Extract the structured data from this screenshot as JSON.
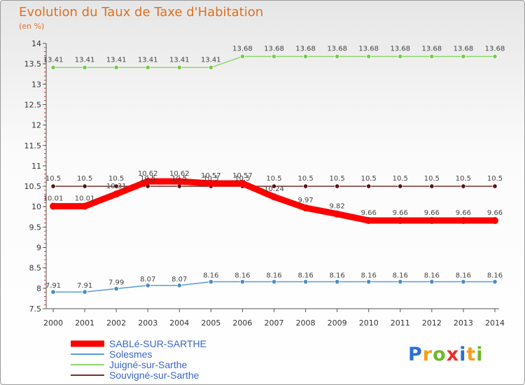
{
  "title": "Evolution du Taux de Taxe d'Habitation",
  "subtitle": "(en %)",
  "logo": {
    "p": "P",
    "r": "r",
    "o": "o",
    "x": "x",
    "i": "i",
    "t": "t",
    "i2": "i"
  },
  "chart_data": {
    "type": "line",
    "title": "Evolution du Taux de Taxe d'Habitation",
    "ylabel": "(en %)",
    "xlabel": "",
    "x": [
      "2000",
      "2001",
      "2002",
      "2003",
      "2004",
      "2005",
      "2006",
      "2007",
      "2008",
      "2009",
      "2010",
      "2011",
      "2012",
      "2013",
      "2014"
    ],
    "ylim": [
      7.5,
      14
    ],
    "yticks": [
      "7.5",
      "8",
      "8.5",
      "9",
      "9.5",
      "10",
      "10.5",
      "11",
      "11.5",
      "12",
      "12.5",
      "13",
      "13.5",
      "14"
    ],
    "grid": false,
    "legend": "bottom-left",
    "series": [
      {
        "name": "SABLé-SUR-SARTHE",
        "color": "#ff0000",
        "values": [
          10.01,
          10.01,
          10.31,
          10.62,
          10.62,
          10.57,
          10.57,
          10.24,
          9.97,
          9.82,
          9.66,
          9.66,
          9.66,
          9.66,
          9.66
        ],
        "labels": [
          "10.01",
          "10.01",
          "10.31",
          "10.62",
          "10.62",
          "10.57",
          "10.57",
          "10.24",
          "9.97",
          "9.82",
          "9.66",
          "9.66",
          "9.66",
          "9.66",
          "9.66"
        ]
      },
      {
        "name": "Solesmes",
        "color": "#5b9bd5",
        "values": [
          7.91,
          7.91,
          7.99,
          8.07,
          8.07,
          8.16,
          8.16,
          8.16,
          8.16,
          8.16,
          8.16,
          8.16,
          8.16,
          8.16,
          8.16
        ],
        "labels": [
          "7.91",
          "7.91",
          "7.99",
          "8.07",
          "8.07",
          "8.16",
          "8.16",
          "8.16",
          "8.16",
          "8.16",
          "8.16",
          "8.16",
          "8.16",
          "8.16",
          "8.16"
        ]
      },
      {
        "name": "Juigné-sur-Sarthe",
        "color": "#8fd46a",
        "values": [
          13.41,
          13.41,
          13.41,
          13.41,
          13.41,
          13.41,
          13.68,
          13.68,
          13.68,
          13.68,
          13.68,
          13.68,
          13.68,
          13.68,
          13.68
        ],
        "labels": [
          "13.41",
          "13.41",
          "13.41",
          "13.41",
          "13.41",
          "13.41",
          "13.68",
          "13.68",
          "13.68",
          "13.68",
          "13.68",
          "13.68",
          "13.68",
          "13.68",
          "13.68"
        ]
      },
      {
        "name": "Souvigné-sur-Sarthe",
        "color": "#7a3030",
        "values": [
          10.5,
          10.5,
          10.5,
          10.5,
          10.5,
          10.5,
          10.5,
          10.5,
          10.5,
          10.5,
          10.5,
          10.5,
          10.5,
          10.5,
          10.5
        ],
        "labels": [
          "10.5",
          "10.5",
          "10.5",
          "10.5",
          "10.5",
          "10.5",
          "10.5",
          "10.5",
          "10.5",
          "10.5",
          "10.5",
          "10.5",
          "10.5",
          "10.5",
          "10.5"
        ]
      }
    ]
  }
}
